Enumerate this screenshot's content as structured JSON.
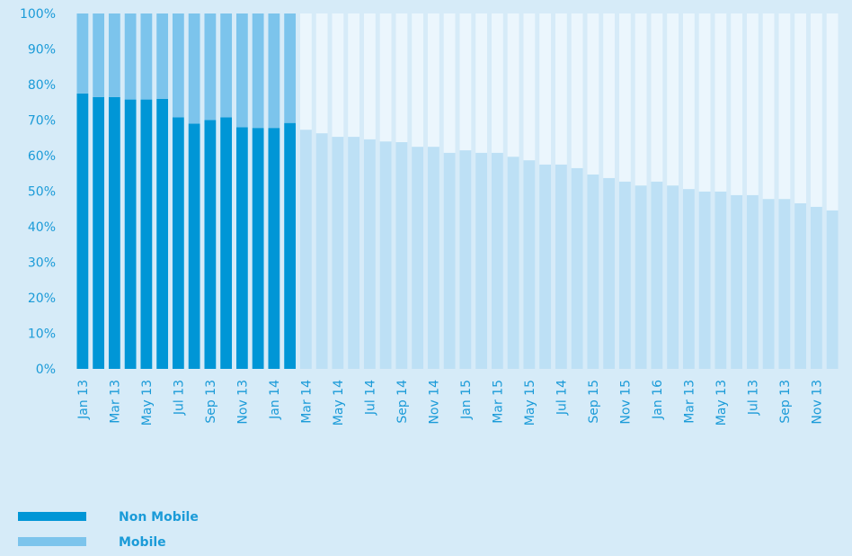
{
  "chart_data": {
    "type": "bar",
    "stacked": true,
    "categories": [
      "Jan 13",
      null,
      "Mar 13",
      null,
      "May 13",
      null,
      "Jul 13",
      null,
      "Sep 13",
      null,
      "Nov 13",
      null,
      "Jan 14",
      null,
      "Mar 14",
      null,
      "May 14",
      null,
      "Jul 14",
      null,
      "Sep 14",
      null,
      "Nov 14",
      null,
      "Jan 15",
      null,
      "Mar 15",
      null,
      "May 15",
      null,
      "Jul 14",
      null,
      "Sep 15",
      null,
      "Nov 15",
      null,
      "Jan 16",
      null,
      "Mar 13",
      null,
      "May 13",
      null,
      "Jul 13",
      null,
      "Sep 13",
      null,
      "Nov 13",
      null
    ],
    "series": [
      {
        "name": "Non Mobile",
        "color": "#0096d6",
        "colors": [
          "#0096d6",
          "#0096d6",
          "#0096d6",
          "#0096d6",
          "#0096d6",
          "#0096d6",
          "#0096d6",
          "#0096d6",
          "#0096d6",
          "#0096d6",
          "#0096d6",
          "#0096d6",
          "#0096d6",
          "#0096d6",
          "#bde0f5",
          "#bde0f5",
          "#bde0f5",
          "#bde0f5",
          "#bde0f5",
          "#bde0f5",
          "#bde0f5",
          "#bde0f5",
          "#bde0f5",
          "#bde0f5",
          "#bde0f5",
          "#bde0f5",
          "#bde0f5",
          "#bde0f5",
          "#bde0f5",
          "#bde0f5",
          "#bde0f5",
          "#bde0f5",
          "#bde0f5",
          "#bde0f5",
          "#bde0f5",
          "#bde0f5",
          "#bde0f5",
          "#bde0f5",
          "#bde0f5",
          "#bde0f5",
          "#bde0f5",
          "#bde0f5",
          "#bde0f5",
          "#bde0f5",
          "#bde0f5",
          "#bde0f5",
          "#bde0f5",
          "#bde0f5"
        ],
        "values": [
          77.5,
          76.5,
          76.5,
          75.8,
          75.8,
          76,
          70.8,
          69,
          70,
          70.8,
          68,
          67.8,
          67.8,
          69.2,
          67.3,
          66.3,
          65.3,
          65.3,
          64.6,
          64,
          63.8,
          62.5,
          62.5,
          60.8,
          61.5,
          60.8,
          60.8,
          59.7,
          58.7,
          57.5,
          57.5,
          56.5,
          54.7,
          53.7,
          52.7,
          51.6,
          52.7,
          51.6,
          50.6,
          49.9,
          49.9,
          48.9,
          48.9,
          47.8,
          47.8,
          46.6,
          45.6,
          44.6
        ]
      },
      {
        "name": "Mobile",
        "color": "#7cc4ec",
        "colors": [
          "#7cc4ec",
          "#7cc4ec",
          "#7cc4ec",
          "#7cc4ec",
          "#7cc4ec",
          "#7cc4ec",
          "#7cc4ec",
          "#7cc4ec",
          "#7cc4ec",
          "#7cc4ec",
          "#7cc4ec",
          "#7cc4ec",
          "#7cc4ec",
          "#7cc4ec",
          "#ebf6fd",
          "#ebf6fd",
          "#ebf6fd",
          "#ebf6fd",
          "#ebf6fd",
          "#ebf6fd",
          "#ebf6fd",
          "#ebf6fd",
          "#ebf6fd",
          "#ebf6fd",
          "#ebf6fd",
          "#ebf6fd",
          "#ebf6fd",
          "#ebf6fd",
          "#ebf6fd",
          "#ebf6fd",
          "#ebf6fd",
          "#ebf6fd",
          "#ebf6fd",
          "#ebf6fd",
          "#ebf6fd",
          "#ebf6fd",
          "#ebf6fd",
          "#ebf6fd",
          "#ebf6fd",
          "#ebf6fd",
          "#ebf6fd",
          "#ebf6fd",
          "#ebf6fd",
          "#ebf6fd",
          "#ebf6fd",
          "#ebf6fd",
          "#ebf6fd",
          "#ebf6fd"
        ],
        "values": [
          22.5,
          23.5,
          23.5,
          24.2,
          24.2,
          24,
          29.2,
          31,
          30,
          29.2,
          32,
          32.2,
          32.2,
          30.8,
          32.7,
          33.7,
          34.7,
          34.7,
          35.4,
          36,
          36.2,
          37.5,
          37.5,
          39.2,
          38.5,
          39.2,
          39.2,
          40.3,
          41.3,
          42.5,
          42.5,
          43.5,
          45.3,
          46.3,
          47.3,
          48.4,
          47.3,
          48.4,
          49.4,
          50.1,
          50.1,
          51.1,
          51.1,
          52.2,
          52.2,
          53.4,
          54.4,
          55.4
        ]
      }
    ],
    "ylim": [
      0,
      100
    ],
    "yticks": [
      {
        "value": 0,
        "label": "0%"
      },
      {
        "value": 10,
        "label": "10%"
      },
      {
        "value": 20,
        "label": "20%"
      },
      {
        "value": 30,
        "label": "30%"
      },
      {
        "value": 40,
        "label": "40%"
      },
      {
        "value": 50,
        "label": "50%"
      },
      {
        "value": 60,
        "label": "60%"
      },
      {
        "value": 70,
        "label": "70%"
      },
      {
        "value": 80,
        "label": "80%"
      },
      {
        "value": 90,
        "label": "90%"
      },
      {
        "value": 100,
        "label": "100%"
      }
    ],
    "grid": false,
    "legend": "bottom-left"
  }
}
